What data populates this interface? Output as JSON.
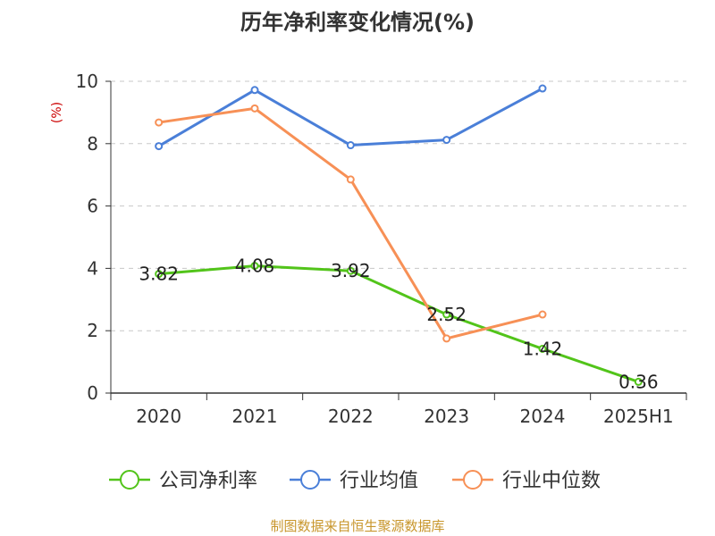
{
  "chart_data": {
    "type": "line",
    "title": "历年净利率变化情况(%)",
    "ylabel": "(%)",
    "xlabel": "",
    "categories": [
      "2020",
      "2021",
      "2022",
      "2023",
      "2024",
      "2025H1"
    ],
    "ylim": [
      0,
      10
    ],
    "yticks": [
      0,
      2,
      4,
      6,
      8,
      10
    ],
    "grid": true,
    "legend_position": "bottom",
    "series": [
      {
        "name": "公司净利率",
        "color": "#52c41a",
        "values": [
          3.82,
          4.08,
          3.92,
          2.52,
          1.42,
          0.36
        ],
        "labels": [
          "3.82",
          "4.08",
          "3.92",
          "2.52",
          "1.42",
          "0.36"
        ]
      },
      {
        "name": "行业均值",
        "color": "#4a7fd8",
        "values": [
          7.92,
          9.72,
          7.95,
          8.12,
          9.77,
          null
        ]
      },
      {
        "name": "行业中位数",
        "color": "#f79056",
        "values": [
          8.68,
          9.13,
          6.85,
          1.75,
          2.52,
          null
        ]
      }
    ]
  },
  "source": "制图数据来自恒生聚源数据库"
}
